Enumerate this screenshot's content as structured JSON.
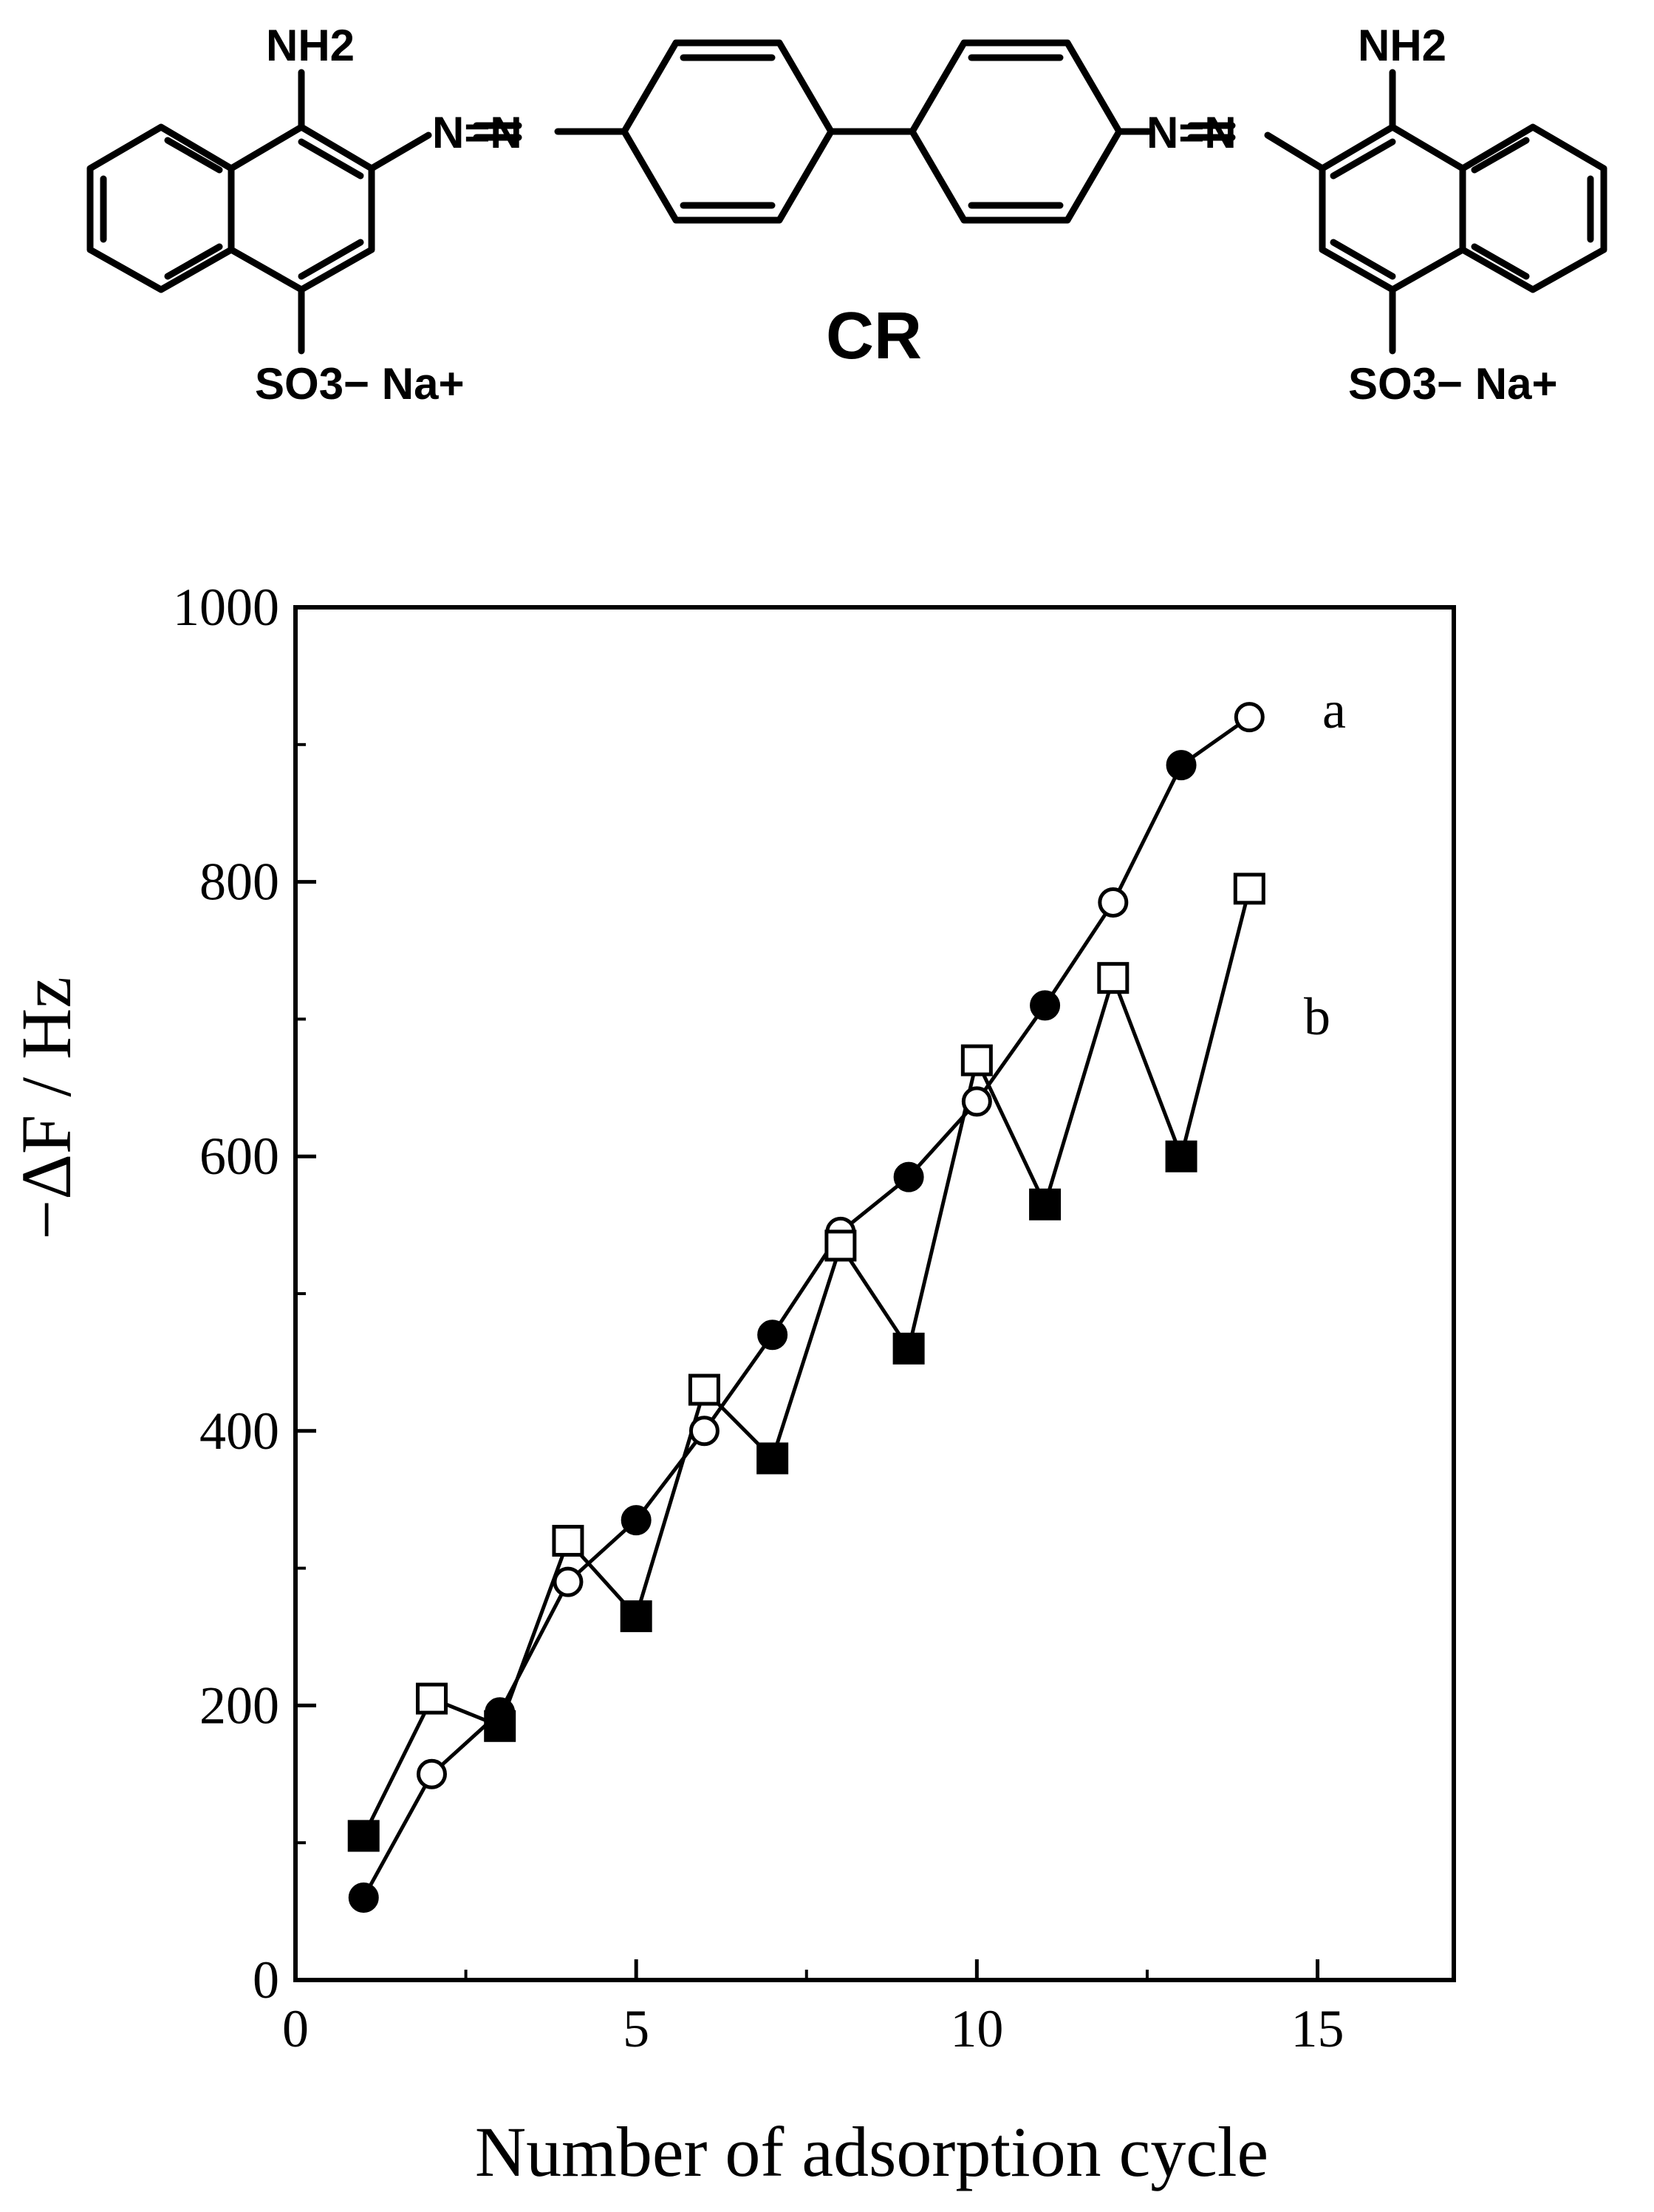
{
  "structure": {
    "compound_label": "CR",
    "amine_left": "NH2",
    "amine_right": "NH2",
    "azo_left": "N=N",
    "azo_right": "N=N",
    "sulfonate_left": "SO3− Na+",
    "sulfonate_right": "SO3− Na+"
  },
  "chart_data": {
    "type": "line",
    "title": "",
    "xlabel": "Number of adsorption cycle",
    "ylabel": "−ΔF / Hz",
    "xlim": [
      0,
      17
    ],
    "ylim": [
      0,
      1000
    ],
    "x_ticks": [
      0,
      5,
      10,
      15
    ],
    "y_ticks": [
      0,
      200,
      400,
      600,
      800,
      1000
    ],
    "grid": false,
    "legend": "inline labels at right end of each series",
    "series": [
      {
        "name": "a",
        "marker": "circle",
        "points": [
          {
            "x": 1,
            "y": 60,
            "filled": true
          },
          {
            "x": 2,
            "y": 150,
            "filled": false
          },
          {
            "x": 3,
            "y": 195,
            "filled": true
          },
          {
            "x": 4,
            "y": 290,
            "filled": false
          },
          {
            "x": 5,
            "y": 335,
            "filled": true
          },
          {
            "x": 6,
            "y": 400,
            "filled": false
          },
          {
            "x": 7,
            "y": 470,
            "filled": true
          },
          {
            "x": 8,
            "y": 545,
            "filled": false
          },
          {
            "x": 9,
            "y": 585,
            "filled": true
          },
          {
            "x": 10,
            "y": 640,
            "filled": false
          },
          {
            "x": 11,
            "y": 710,
            "filled": true
          },
          {
            "x": 12,
            "y": 785,
            "filled": false
          },
          {
            "x": 13,
            "y": 885,
            "filled": true
          },
          {
            "x": 14,
            "y": 920,
            "filled": false
          }
        ]
      },
      {
        "name": "b",
        "marker": "square",
        "points": [
          {
            "x": 1,
            "y": 105,
            "filled": true
          },
          {
            "x": 2,
            "y": 205,
            "filled": false
          },
          {
            "x": 3,
            "y": 185,
            "filled": true
          },
          {
            "x": 4,
            "y": 320,
            "filled": false
          },
          {
            "x": 5,
            "y": 265,
            "filled": true
          },
          {
            "x": 6,
            "y": 430,
            "filled": false
          },
          {
            "x": 7,
            "y": 380,
            "filled": true
          },
          {
            "x": 8,
            "y": 535,
            "filled": false
          },
          {
            "x": 9,
            "y": 460,
            "filled": true
          },
          {
            "x": 10,
            "y": 670,
            "filled": false
          },
          {
            "x": 11,
            "y": 565,
            "filled": true
          },
          {
            "x": 12,
            "y": 730,
            "filled": false
          },
          {
            "x": 13,
            "y": 600,
            "filled": true
          },
          {
            "x": 14,
            "y": 795,
            "filled": false
          }
        ]
      }
    ]
  }
}
